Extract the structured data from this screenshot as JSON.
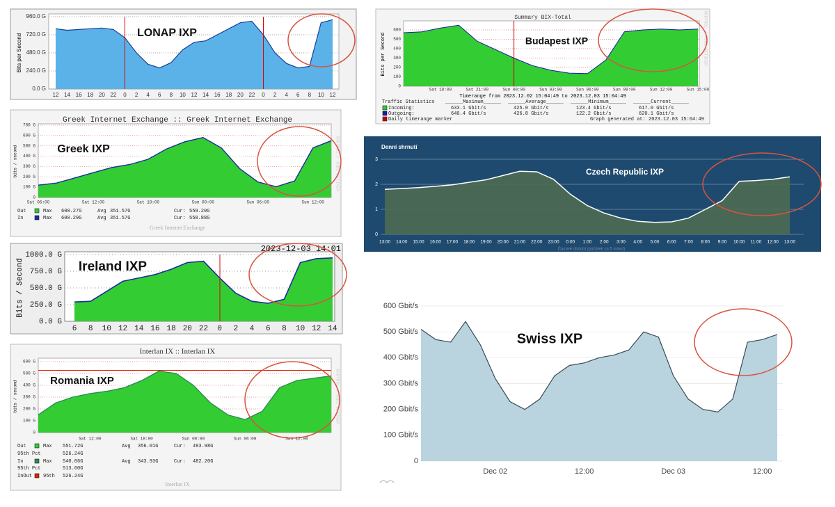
{
  "chart_data": [
    {
      "type": "area",
      "annotation": "LONAP IXP",
      "y_label": "Bits per Second",
      "categories": [
        "12",
        "14",
        "16",
        "18",
        "20",
        "22",
        "0",
        "2",
        "4",
        "6",
        "8",
        "10",
        "12",
        "14",
        "16",
        "18",
        "20",
        "22",
        "0",
        "2",
        "4",
        "6",
        "8",
        "10",
        "12"
      ],
      "values": [
        800,
        780,
        790,
        800,
        810,
        790,
        680,
        480,
        330,
        280,
        350,
        520,
        620,
        640,
        720,
        800,
        880,
        900,
        720,
        480,
        340,
        280,
        300,
        880,
        920
      ],
      "color": "#5ab2e8",
      "line_color": "#1c3f94",
      "ylim": [
        0,
        960
      ],
      "yticks": [
        {
          "value": 0,
          "label": "0.0 G"
        },
        {
          "value": 240,
          "label": "240.0 G"
        },
        {
          "value": 480,
          "label": "480.0 G"
        },
        {
          "value": 720,
          "label": "720.0 G"
        },
        {
          "value": 960,
          "label": "960.0 G"
        }
      ],
      "grid": true
    },
    {
      "type": "area",
      "title": "Greek Internet Exchange :: Greek Internet Exchange",
      "annotation": "Greek IXP",
      "y_label": "bits / second",
      "footer": "Greek Internet Exchange",
      "watermark": "RRDTOOL / TOBI OETIKER",
      "categories": [
        "Sat 06:00",
        null,
        null,
        "Sat 12:00",
        null,
        null,
        "Sat 18:00",
        null,
        null,
        "Sun 00:00",
        null,
        null,
        "Sun 06:00",
        null,
        null,
        "Sun 12:00",
        null
      ],
      "values": [
        120,
        140,
        190,
        240,
        290,
        320,
        370,
        470,
        540,
        580,
        480,
        280,
        150,
        105,
        160,
        480,
        550
      ],
      "color": "#33cc33",
      "line_color": "#1e2ba0",
      "ylim": [
        0,
        700
      ],
      "yticks": [
        0,
        {
          "value": 100,
          "label": "100 G"
        },
        {
          "value": 200,
          "label": "200 G"
        },
        {
          "value": 300,
          "label": "300 G"
        },
        {
          "value": 400,
          "label": "400 G"
        },
        {
          "value": 500,
          "label": "500 G"
        },
        {
          "value": 600,
          "label": "600 G"
        },
        {
          "value": 700,
          "label": "700 G"
        }
      ],
      "grid": true,
      "stats": [
        [
          "Out",
          "Max",
          "600.27G",
          "Avg",
          "351.57G",
          "Cur:",
          "559.20G"
        ],
        [
          "In",
          "Max",
          "600.29G",
          "Avg",
          "351.57G",
          "Cur:",
          "558.88G"
        ]
      ]
    },
    {
      "type": "area",
      "annotation": "Ireland IXP",
      "y_label": "Bits / Second",
      "timestamp": "2023-12-03 14:01",
      "categories": [
        "6",
        "8",
        "10",
        "12",
        "14",
        "16",
        "18",
        "20",
        "22",
        "0",
        "2",
        "4",
        "6",
        "8",
        "10",
        "12",
        "14"
      ],
      "values": [
        290,
        300,
        450,
        600,
        650,
        700,
        780,
        880,
        900,
        650,
        420,
        300,
        270,
        330,
        880,
        940,
        950
      ],
      "color": "#33cc33",
      "line_color": "#1e2ba0",
      "ylim": [
        0,
        1000
      ],
      "yticks": [
        {
          "value": 0,
          "label": "0.0 G"
        },
        {
          "value": 250,
          "label": "250.0 G"
        },
        {
          "value": 500,
          "label": "500.0 G"
        },
        {
          "value": 750,
          "label": "750.0 G"
        },
        {
          "value": 1000,
          "label": "1000.0 G"
        }
      ],
      "grid": true
    },
    {
      "type": "area",
      "title": "Interlan IX :: Interlan IX",
      "annotation": "Romania IXP",
      "y_label": "bits / second",
      "footer": "Interlan IX",
      "watermark": "RRDTOOL / TOBI OETIKER",
      "categories": [
        null,
        null,
        null,
        "Sat 12:00",
        null,
        null,
        "Sat 18:00",
        null,
        null,
        "Sun 00:00",
        null,
        null,
        "Sun 06:00",
        null,
        null,
        "Sun 12:00",
        null,
        null
      ],
      "values": [
        150,
        250,
        300,
        330,
        350,
        380,
        440,
        520,
        500,
        400,
        250,
        150,
        110,
        180,
        380,
        440,
        460,
        480
      ],
      "color": "#33cc33",
      "line_color": "#2e8b57",
      "ylim": [
        0,
        600
      ],
      "hline": 526.24,
      "yticks": [
        0,
        {
          "value": 100,
          "label": "100 G"
        },
        {
          "value": 200,
          "label": "200 G"
        },
        {
          "value": 300,
          "label": "300 G"
        },
        {
          "value": 400,
          "label": "400 G"
        },
        {
          "value": 500,
          "label": "500 G"
        },
        {
          "value": 600,
          "label": "600 G"
        }
      ],
      "grid": true,
      "stats": [
        [
          "Out",
          "Max",
          "551.72G",
          "Avg",
          "356.01G",
          "Cur:",
          "493.98G"
        ],
        [
          "95th Pct",
          "526.24G"
        ],
        [
          "In",
          "Max",
          "540.06G",
          "Avg",
          "343.93G",
          "Cur:",
          "482.20G"
        ],
        [
          "95th Pct",
          "513.60G"
        ],
        [
          "InOut",
          "95th",
          "526.24G"
        ]
      ]
    },
    {
      "type": "area",
      "title": "Summary BIX-Total",
      "annotation": "Budapest IXP",
      "y_label": "Bits per Second",
      "watermark": "RRDTOOL / TOBI OETIKER",
      "timerange": "Timerange from 2023.12.02 15:04:49 to 2023.12.03 15:04:49",
      "categories": [
        null,
        null,
        "Sat 18:00",
        null,
        "Sat 21:00",
        null,
        "Sun 00:00",
        null,
        "Sun 03:00",
        null,
        "Sun 06:00",
        null,
        "Sun 09:00",
        null,
        "Sun 12:00",
        null,
        "Sun 15:00"
      ],
      "values": [
        570,
        580,
        620,
        650,
        480,
        390,
        300,
        220,
        170,
        140,
        135,
        280,
        580,
        600,
        610,
        600,
        610
      ],
      "color": "#33cc33",
      "line_color": "#1a1aa8",
      "ylim": [
        0,
        600
      ],
      "yticks": [
        0,
        100,
        200,
        300,
        400,
        500,
        600
      ],
      "grid": true,
      "stats": [
        [
          "Traffic Statistics",
          "______Maximum______",
          "______Average______",
          "______Minimum______",
          "______Current______"
        ],
        [
          "Incoming:",
          "633.1 Gbit/s",
          "425.0 Gbit/s",
          "123.4 Gbit/s",
          "617.0 Gbit/s"
        ],
        [
          "Outgoing:",
          "640.4 Gbit/s",
          "426.8 Gbit/s",
          "122.2 Gbit/s",
          "620.1 Gbit/s"
        ],
        [
          "Daily timerange marker",
          "Graph generated at: 2023.12.03 15:04:49"
        ]
      ]
    },
    {
      "type": "area",
      "title": "Denní shrnutí",
      "annotation": "Czech Republic IXP",
      "footer": "Časové období (počátek za 5 minut)",
      "categories": [
        "13:00",
        "14:00",
        "15:00",
        "16:00",
        "17:00",
        "18:00",
        "19:00",
        "20:00",
        "21:00",
        "22:00",
        "23:00",
        "0:00",
        "1:00",
        "2:00",
        "3:00",
        "4:00",
        "5:00",
        "6:00",
        "7:00",
        "8:00",
        "9:00",
        "10:00",
        "11:00",
        "12:00",
        "13:00"
      ],
      "values": [
        1.8,
        1.83,
        1.87,
        1.92,
        1.98,
        2.08,
        2.18,
        2.35,
        2.52,
        2.5,
        2.2,
        1.6,
        1.15,
        0.85,
        0.65,
        0.52,
        0.48,
        0.5,
        0.65,
        1.0,
        1.35,
        2.12,
        2.15,
        2.2,
        2.3
      ],
      "color": "#4c6a52",
      "line_color": "#ffffff",
      "ylim": [
        0,
        3
      ],
      "yticks": [
        0,
        1,
        2,
        3
      ],
      "grid": true
    },
    {
      "type": "area",
      "annotation": "Swiss IXP",
      "categories": [
        null,
        null,
        null,
        null,
        null,
        "Dec 02",
        null,
        null,
        null,
        null,
        null,
        "12:00",
        null,
        null,
        null,
        null,
        null,
        "Dec 03",
        null,
        null,
        null,
        null,
        null,
        "12:00",
        null
      ],
      "values": [
        510,
        470,
        460,
        540,
        450,
        320,
        230,
        200,
        240,
        330,
        370,
        380,
        400,
        410,
        430,
        500,
        480,
        330,
        240,
        200,
        190,
        240,
        460,
        470,
        490
      ],
      "color": "#b9d4de",
      "line_color": "#3a4a55",
      "ylim": [
        0,
        600
      ],
      "yticks": [
        0,
        {
          "value": 100,
          "label": "100 Gbit/s"
        },
        {
          "value": 200,
          "label": "200 Gbit/s"
        },
        {
          "value": 300,
          "label": "300 Gbit/s"
        },
        {
          "value": 400,
          "label": "400 Gbit/s"
        },
        {
          "value": 500,
          "label": "500 Gbit/s"
        },
        {
          "value": 600,
          "label": "600 Gbit/s"
        }
      ],
      "grid": true
    }
  ]
}
